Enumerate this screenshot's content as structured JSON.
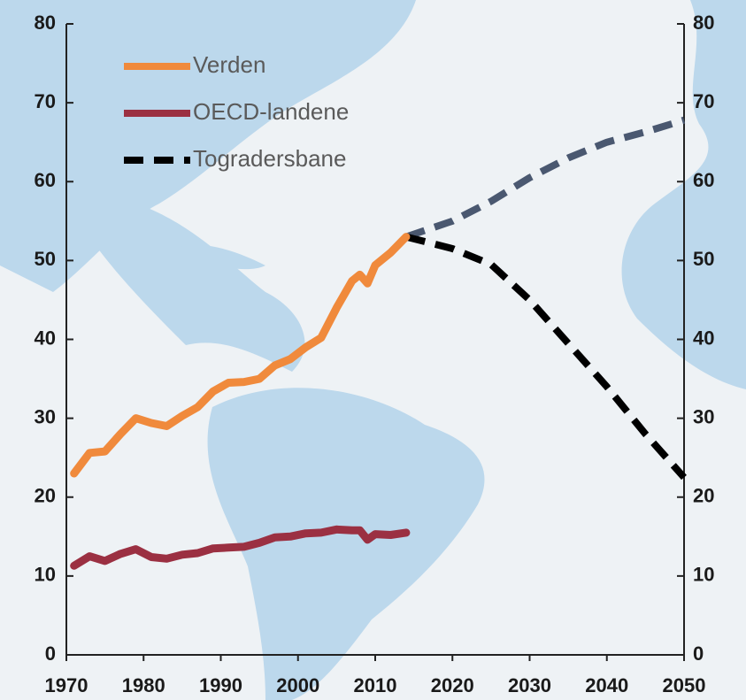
{
  "chart_data": {
    "type": "line",
    "xlim": [
      1970,
      2050
    ],
    "xticks": [
      1970,
      1980,
      1990,
      2000,
      2010,
      2020,
      2030,
      2040,
      2050
    ],
    "ylim": [
      0,
      80
    ],
    "yticks": [
      0,
      10,
      20,
      30,
      40,
      50,
      60,
      70,
      80
    ],
    "y2lim": [
      0,
      80
    ],
    "y2ticks": [
      0,
      10,
      20,
      30,
      40,
      50,
      60,
      70,
      80
    ],
    "legend": "upper left",
    "series": [
      {
        "name": "Verden",
        "color": "#f08a3c",
        "dashed": false,
        "x": [
          1971,
          1973,
          1975,
          1977,
          1979,
          1981,
          1983,
          1985,
          1987,
          1989,
          1991,
          1993,
          1995,
          1997,
          1999,
          2001,
          2003,
          2005,
          2007,
          2008,
          2009,
          2010,
          2012,
          2014
        ],
        "values": [
          23,
          25.6,
          25.8,
          28,
          30,
          29.4,
          29,
          30.3,
          31.4,
          33.4,
          34.5,
          34.6,
          35,
          36.7,
          37.5,
          39,
          40.2,
          44,
          47.4,
          48.2,
          47.1,
          49.4,
          51,
          53
        ]
      },
      {
        "name": "OECD-landene",
        "color": "#9b3042",
        "dashed": false,
        "x": [
          1971,
          1973,
          1975,
          1977,
          1979,
          1981,
          1983,
          1985,
          1987,
          1989,
          1991,
          1993,
          1995,
          1997,
          1999,
          2001,
          2003,
          2005,
          2007,
          2008,
          2009,
          2010,
          2012,
          2014
        ],
        "values": [
          11.3,
          12.5,
          11.9,
          12.8,
          13.4,
          12.4,
          12.2,
          12.7,
          12.9,
          13.5,
          13.6,
          13.7,
          14.2,
          14.9,
          15,
          15.4,
          15.5,
          15.9,
          15.8,
          15.8,
          14.6,
          15.3,
          15.2,
          15.5
        ]
      },
      {
        "name": "Togradersbane",
        "color": "#000000",
        "dashed": true,
        "x": [
          2014,
          2020,
          2025,
          2030,
          2035,
          2040,
          2045,
          2050
        ],
        "values": [
          53,
          51.5,
          49.5,
          45,
          39.5,
          34,
          28,
          22.5
        ]
      },
      {
        "color": "#4a5870",
        "dashed": true,
        "x": [
          2014,
          2020,
          2025,
          2030,
          2035,
          2040,
          2045,
          2050
        ],
        "values": [
          53,
          55,
          57.5,
          60.5,
          63,
          65,
          66.3,
          67.8
        ]
      }
    ]
  }
}
